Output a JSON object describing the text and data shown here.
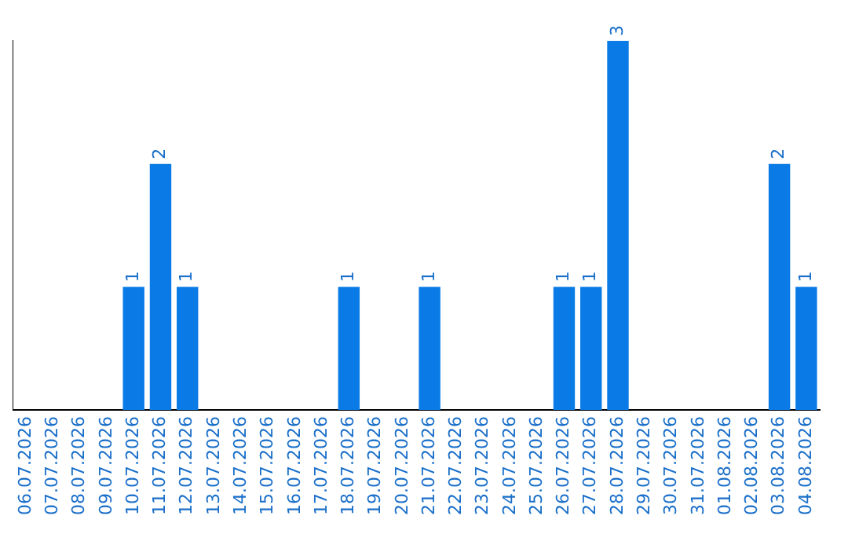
{
  "chart_data": {
    "type": "bar",
    "categories": [
      "06.07.2026",
      "07.07.2026",
      "08.07.2026",
      "09.07.2026",
      "10.07.2026",
      "11.07.2026",
      "12.07.2026",
      "13.07.2026",
      "14.07.2026",
      "15.07.2026",
      "16.07.2026",
      "17.07.2026",
      "18.07.2026",
      "19.07.2026",
      "20.07.2026",
      "21.07.2026",
      "22.07.2026",
      "23.07.2026",
      "24.07.2026",
      "25.07.2026",
      "26.07.2026",
      "27.07.2026",
      "28.07.2026",
      "29.07.2026",
      "30.07.2026",
      "31.07.2026",
      "01.08.2026",
      "02.08.2026",
      "03.08.2026",
      "04.08.2026"
    ],
    "values": [
      0,
      0,
      0,
      0,
      1,
      2,
      1,
      0,
      0,
      0,
      0,
      0,
      1,
      0,
      0,
      1,
      0,
      0,
      0,
      0,
      1,
      1,
      3,
      0,
      0,
      0,
      0,
      0,
      2,
      1
    ],
    "value_labels": [
      null,
      null,
      null,
      null,
      "1",
      "2",
      "1",
      null,
      null,
      null,
      null,
      null,
      "1",
      null,
      null,
      "1",
      null,
      null,
      null,
      null,
      "1",
      "1",
      "3",
      null,
      null,
      null,
      null,
      null,
      "2",
      "1"
    ],
    "color": "#0a7be6",
    "tick_labels": "x",
    "grid": false,
    "legend": false
  }
}
